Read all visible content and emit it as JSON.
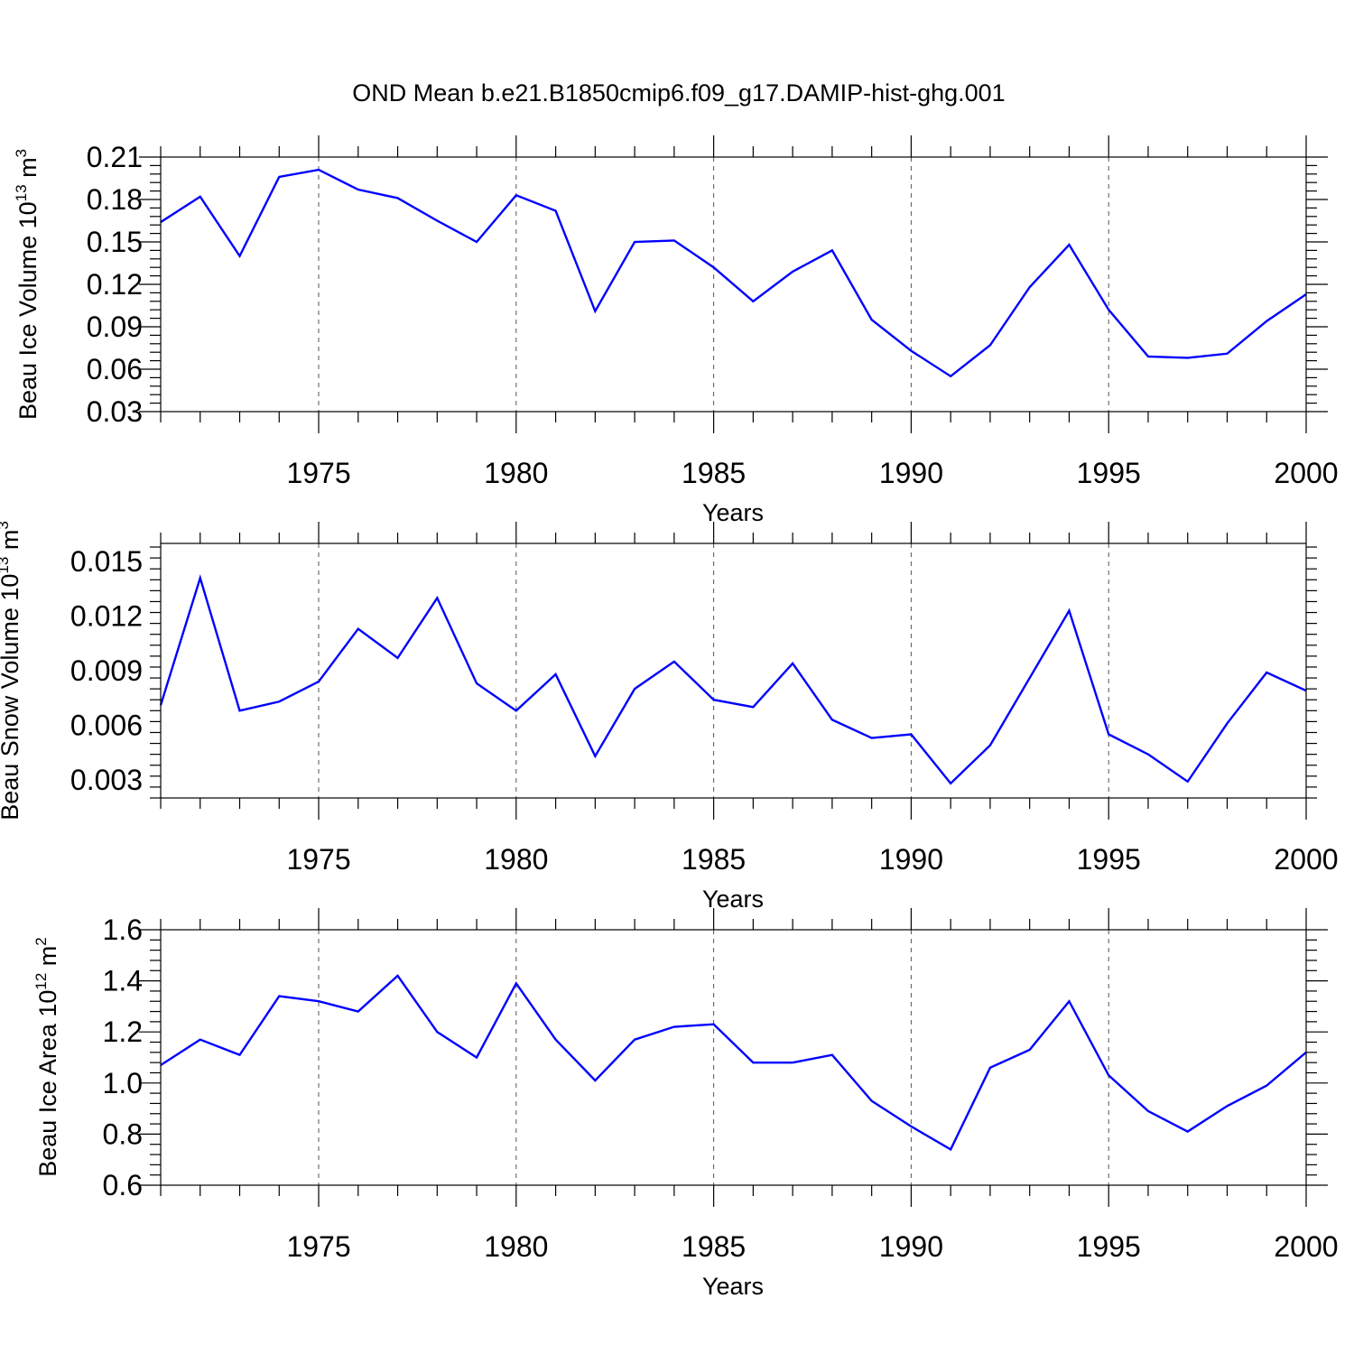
{
  "figure": {
    "title": "OND Mean b.e21.B1850cmip6.f09_g17.DAMIP-hist-ghg.001",
    "line_color": "#0000ff"
  },
  "chart_data": [
    {
      "type": "line",
      "title": "",
      "ylabel": {
        "main": "Beau Ice Volume 10",
        "exp": "13",
        "unit": " m",
        "unit_exp": "3"
      },
      "xlabel": "Years",
      "xlim": [
        1971,
        2000
      ],
      "ylim": [
        0.03,
        0.21
      ],
      "yticks": [
        "0.03",
        "0.06",
        "0.09",
        "0.12",
        "0.15",
        "0.18",
        "0.21"
      ],
      "ytick_values": [
        0.03,
        0.06,
        0.09,
        0.12,
        0.15,
        0.18,
        0.21
      ],
      "xticks": [
        1975,
        1980,
        1985,
        1990,
        1995,
        2000
      ],
      "grid": "dashed vertical at major x ticks",
      "x": [
        1971,
        1972,
        1973,
        1974,
        1975,
        1976,
        1977,
        1978,
        1979,
        1980,
        1981,
        1982,
        1983,
        1984,
        1985,
        1986,
        1987,
        1988,
        1989,
        1990,
        1991,
        1992,
        1993,
        1994,
        1995,
        1996,
        1997,
        1998,
        1999,
        2000
      ],
      "values": [
        0.164,
        0.182,
        0.14,
        0.196,
        0.201,
        0.187,
        0.181,
        0.165,
        0.15,
        0.183,
        0.172,
        0.101,
        0.15,
        0.151,
        0.132,
        0.108,
        0.129,
        0.144,
        0.095,
        0.073,
        0.055,
        0.077,
        0.118,
        0.148,
        0.102,
        0.069,
        0.068,
        0.071,
        0.094,
        0.113
      ]
    },
    {
      "type": "line",
      "title": "",
      "ylabel": {
        "main": "Beau Snow Volume 10",
        "exp": "13",
        "unit": " m",
        "unit_exp": "3"
      },
      "xlabel": "Years",
      "xlim": [
        1971,
        2000
      ],
      "ylim": [
        0.002,
        0.016
      ],
      "yticks": [
        "0.003",
        "0.006",
        "0.009",
        "0.012",
        "0.015"
      ],
      "ytick_values": [
        0.003,
        0.006,
        0.009,
        0.012,
        0.015
      ],
      "xticks": [
        1975,
        1980,
        1985,
        1990,
        1995,
        2000
      ],
      "grid": "dashed vertical at major x ticks",
      "x": [
        1971,
        1972,
        1973,
        1974,
        1975,
        1976,
        1977,
        1978,
        1979,
        1980,
        1981,
        1982,
        1983,
        1984,
        1985,
        1986,
        1987,
        1988,
        1989,
        1990,
        1991,
        1992,
        1993,
        1994,
        1995,
        1996,
        1997,
        1998,
        1999,
        2000
      ],
      "values": [
        0.0071,
        0.0141,
        0.0068,
        0.0073,
        0.0084,
        0.0113,
        0.0097,
        0.013,
        0.0083,
        0.0068,
        0.0088,
        0.0043,
        0.008,
        0.0095,
        0.0074,
        0.007,
        0.0094,
        0.0063,
        0.0053,
        0.0055,
        0.0028,
        0.0049,
        0.0086,
        0.0123,
        0.0055,
        0.0044,
        0.0029,
        0.0061,
        0.0089,
        0.0079
      ]
    },
    {
      "type": "line",
      "title": "",
      "ylabel": {
        "main": "Beau Ice Area 10",
        "exp": "12",
        "unit": " m",
        "unit_exp": "2"
      },
      "xlabel": "Years",
      "xlim": [
        1971,
        2000
      ],
      "ylim": [
        0.6,
        1.6
      ],
      "yticks": [
        "0.6",
        "0.8",
        "1.0",
        "1.2",
        "1.4",
        "1.6"
      ],
      "ytick_values": [
        0.6,
        0.8,
        1.0,
        1.2,
        1.4,
        1.6
      ],
      "xticks": [
        1975,
        1980,
        1985,
        1990,
        1995,
        2000
      ],
      "grid": "dashed vertical at major x ticks",
      "x": [
        1971,
        1972,
        1973,
        1974,
        1975,
        1976,
        1977,
        1978,
        1979,
        1980,
        1981,
        1982,
        1983,
        1984,
        1985,
        1986,
        1987,
        1988,
        1989,
        1990,
        1991,
        1992,
        1993,
        1994,
        1995,
        1996,
        1997,
        1998,
        1999,
        2000
      ],
      "values": [
        1.07,
        1.17,
        1.11,
        1.34,
        1.32,
        1.28,
        1.42,
        1.2,
        1.1,
        1.39,
        1.17,
        1.01,
        1.17,
        1.22,
        1.23,
        1.08,
        1.08,
        1.11,
        0.93,
        0.83,
        0.74,
        1.06,
        1.13,
        1.32,
        1.03,
        0.89,
        0.81,
        0.91,
        0.99,
        1.12
      ]
    }
  ]
}
